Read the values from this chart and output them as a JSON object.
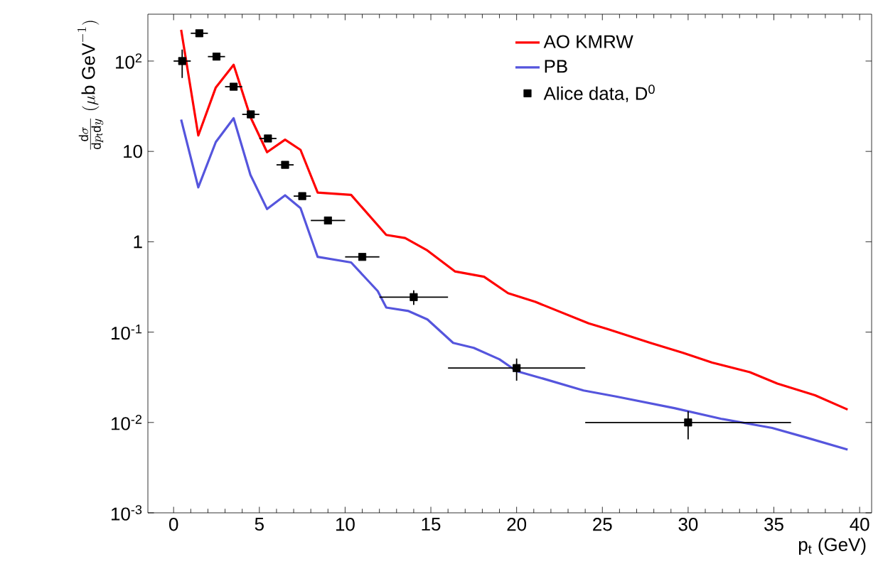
{
  "chart_data": {
    "type": "line",
    "xlabel": "p$_{t}$ (GeV)",
    "ylabel": "\\frac{\\mathrm{d}\\sigma}{\\mathrm{d}p_{\\mathrm{t}}\\mathrm{d}y}\\ (\\mu\\mathrm{b\\ GeV}^{-1})",
    "xlim": [
      -1.5,
      40.7
    ],
    "ylim": [
      0.001,
      330
    ],
    "log": "y",
    "legend": "top right",
    "xticks": [
      0,
      5,
      10,
      15,
      20,
      25,
      30,
      35,
      40
    ],
    "yticks": [
      {
        "value": 0.001,
        "label": "10$^{-3}$"
      },
      {
        "value": 0.01,
        "label": "10$^{-2}$"
      },
      {
        "value": 0.1,
        "label": "10$^{-1}$"
      },
      1,
      10,
      {
        "value": 100,
        "label": "10$^{2}$"
      }
    ],
    "series": [
      {
        "name": "AO KMRW",
        "color": "#ff0000",
        "x": [
          0.44,
          1.44,
          2.46,
          3.5,
          4.48,
          5.45,
          6.5,
          7.4,
          8.4,
          10.35,
          12.4,
          13.5,
          14.8,
          16.4,
          18.1,
          19.5,
          21.1,
          24.2,
          25.3,
          27.8,
          29.7,
          31.4,
          33.6,
          35.2,
          37.4,
          39.3
        ],
        "values": [
          222,
          15,
          51,
          91,
          24,
          9.8,
          13.5,
          10.4,
          3.5,
          3.3,
          1.19,
          1.1,
          0.8,
          0.47,
          0.41,
          0.27,
          0.216,
          0.125,
          0.108,
          0.076,
          0.059,
          0.046,
          0.036,
          0.027,
          0.02,
          0.0139
        ]
      },
      {
        "name": "PB",
        "color": "#5555dd",
        "x": [
          0.44,
          1.44,
          2.46,
          3.5,
          4.48,
          5.45,
          6.5,
          7.4,
          8.4,
          10.35,
          11.9,
          12.4,
          13.7,
          14.8,
          16.3,
          17.5,
          19,
          20,
          21.7,
          23.9,
          25.8,
          29.2,
          31.9,
          34.9,
          36.9,
          39.3
        ],
        "values": [
          22.5,
          4.0,
          12.7,
          23.3,
          5.5,
          2.3,
          3.27,
          2.36,
          0.68,
          0.59,
          0.285,
          0.187,
          0.171,
          0.138,
          0.076,
          0.067,
          0.05,
          0.037,
          0.03,
          0.0226,
          0.0194,
          0.0144,
          0.011,
          0.0087,
          0.0068,
          0.005
        ]
      },
      {
        "name": "Alice data, D$^{0}$",
        "color": "#000000",
        "type": "scatter",
        "marker": "square",
        "x": [
          0.5,
          1.5,
          2.5,
          3.5,
          4.5,
          5.5,
          6.5,
          7.5,
          9,
          11,
          14,
          20,
          30
        ],
        "values": [
          100,
          203,
          112,
          52,
          25.7,
          13.9,
          7.1,
          3.2,
          1.72,
          0.68,
          0.244,
          0.04,
          0.01
        ],
        "errors": [
          [
            65,
            134
          ],
          null,
          null,
          null,
          null,
          null,
          null,
          null,
          null,
          null,
          [
            0.2,
            0.29
          ],
          [
            0.029,
            0.051
          ],
          [
            0.0065,
            0.0133
          ]
        ],
        "xerrors": [
          0.5,
          0.5,
          0.5,
          0.5,
          0.5,
          0.5,
          0.5,
          0.5,
          1,
          1,
          2,
          4,
          6
        ]
      }
    ]
  }
}
